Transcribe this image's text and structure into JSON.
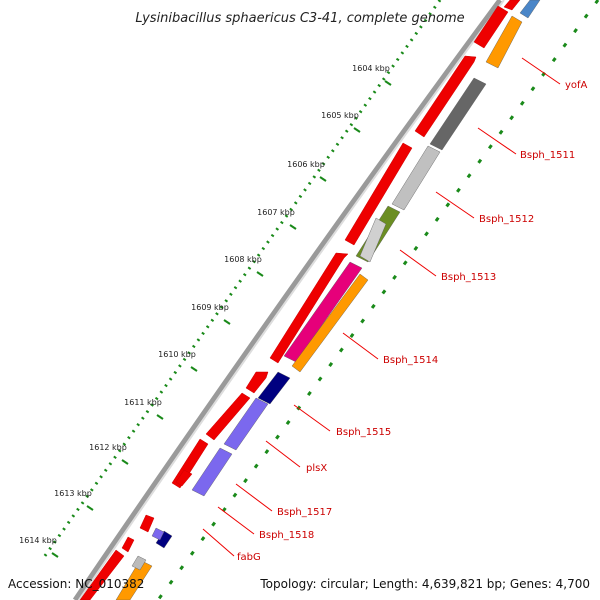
{
  "title": "Lysinibacillus sphaericus C3-41, complete genome",
  "footer": {
    "accession": "Accession: NC_010382",
    "summary": "Topology: circular; Length: 4,639,821 bp; Genes: 4,700"
  },
  "ticks": [
    "1604 kbp",
    "1605 kbp",
    "1606 kbp",
    "1607 kbp",
    "1608 kbp",
    "1609 kbp",
    "1610 kbp",
    "1611 kbp",
    "1612 kbp",
    "1613 kbp",
    "1614 kbp"
  ],
  "gene_labels": [
    "yofA",
    "Bsph_1511",
    "Bsph_1512",
    "Bsph_1513",
    "Bsph_1514",
    "Bsph_1515",
    "plsX",
    "Bsph_1517",
    "Bsph_1518",
    "fabG"
  ],
  "colors": {
    "forward": "#ee0000",
    "label": "#cc0000",
    "leader": "#ee0000",
    "tick": "#1a8a1a",
    "backbone": "#9a9a9a"
  }
}
